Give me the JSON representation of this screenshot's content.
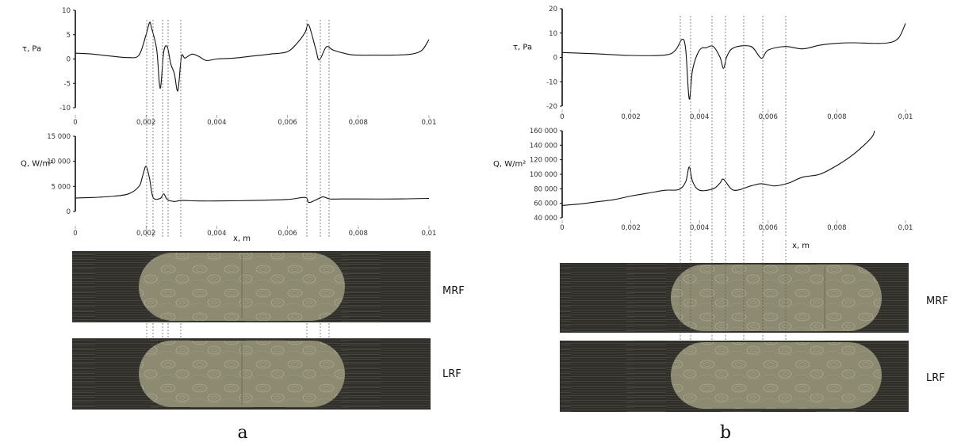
{
  "panels": [
    {
      "letter": "a",
      "charts": [
        {
          "type": "line",
          "ylabel": "τ, Pa",
          "xlabel": "",
          "xlim": [
            0,
            0.01
          ],
          "ylim": [
            -10,
            10
          ],
          "x_ticks": [
            0,
            0.002,
            0.004,
            0.006,
            0.008,
            0.01
          ],
          "x_tick_labels": [
            "0",
            "0,002",
            "0,004",
            "0,006",
            "0,008",
            "0,01"
          ],
          "y_ticks": [
            10,
            5,
            0,
            -5,
            -10
          ],
          "y_tick_labels": [
            "10",
            "5",
            "0",
            "-5",
            "-10"
          ],
          "grid": false,
          "series": [
            {
              "x": [
                0,
                0.0005,
                0.001,
                0.0015,
                0.0018,
                0.002,
                0.0021,
                0.00215,
                0.0023,
                0.0024,
                0.0025,
                0.0026,
                0.0027,
                0.0028,
                0.0029,
                0.003,
                0.0031,
                0.0033,
                0.0035,
                0.0037,
                0.004,
                0.0045,
                0.005,
                0.0055,
                0.006,
                0.0063,
                0.0065,
                0.0066,
                0.0068,
                0.0069,
                0.0071,
                0.0073,
                0.0077,
                0.008,
                0.0085,
                0.009,
                0.0095,
                0.0098,
                0.01
              ],
              "y": [
                1.2,
                1.0,
                0.6,
                0.3,
                0.8,
                5.0,
                7.5,
                6.5,
                2.0,
                -6.0,
                1.5,
                2.5,
                -1.0,
                -3.0,
                -6.5,
                0.5,
                0.2,
                1.0,
                0.5,
                -0.3,
                0.0,
                0.2,
                0.6,
                1.0,
                1.5,
                3.5,
                5.5,
                7.0,
                2.0,
                -0.2,
                2.5,
                1.8,
                1.0,
                0.8,
                0.8,
                0.8,
                1.0,
                1.8,
                4.0
              ]
            }
          ]
        },
        {
          "type": "line",
          "ylabel": "Q, W/m²",
          "xlabel": "x, m",
          "xlim": [
            0,
            0.01
          ],
          "ylim": [
            0,
            15000
          ],
          "x_ticks": [
            0,
            0.002,
            0.004,
            0.006,
            0.008,
            0.01
          ],
          "x_tick_labels": [
            "0",
            "0,002",
            "0,004",
            "0,006",
            "0,008",
            "0,01"
          ],
          "y_ticks": [
            15000,
            10000,
            5000,
            0
          ],
          "y_tick_labels": [
            "15 000",
            "10 000",
            "5 000",
            "0"
          ],
          "grid": false,
          "series": [
            {
              "x": [
                0,
                0.0005,
                0.001,
                0.0015,
                0.0018,
                0.0019,
                0.002,
                0.0021,
                0.0022,
                0.0024,
                0.0025,
                0.0026,
                0.0028,
                0.003,
                0.0035,
                0.004,
                0.005,
                0.006,
                0.0065,
                0.0066,
                0.0068,
                0.007,
                0.0072,
                0.0075,
                0.008,
                0.009,
                0.01
              ],
              "y": [
                2700,
                2800,
                3000,
                3500,
                5000,
                7000,
                9000,
                6500,
                2800,
                2600,
                3500,
                2400,
                2000,
                2200,
                2100,
                2100,
                2200,
                2400,
                2800,
                1800,
                2300,
                2900,
                2500,
                2500,
                2500,
                2500,
                2600
              ]
            }
          ]
        }
      ],
      "flows": [
        {
          "label": "MRF"
        },
        {
          "label": "LRF"
        }
      ]
    },
    {
      "letter": "b",
      "charts": [
        {
          "type": "line",
          "ylabel": "τ, Pa",
          "xlabel": "",
          "xlim": [
            0,
            0.01
          ],
          "ylim": [
            -20,
            20
          ],
          "x_ticks": [
            0,
            0.002,
            0.004,
            0.006,
            0.008,
            0.01
          ],
          "x_tick_labels": [
            "0",
            "0,002",
            "0,004",
            "0,006",
            "0,008",
            "0,01"
          ],
          "y_ticks": [
            20,
            10,
            0,
            -10,
            -20
          ],
          "y_tick_labels": [
            "20",
            "10",
            "0",
            "-10",
            "-20"
          ],
          "grid": false,
          "series": [
            {
              "x": [
                0,
                0.001,
                0.002,
                0.003,
                0.0033,
                0.0035,
                0.0036,
                0.0037,
                0.0038,
                0.004,
                0.0042,
                0.0044,
                0.0046,
                0.0047,
                0.0048,
                0.005,
                0.0055,
                0.0058,
                0.006,
                0.0065,
                0.007,
                0.0075,
                0.008,
                0.0085,
                0.009,
                0.0095,
                0.0098,
                0.01
              ],
              "y": [
                2,
                1.5,
                0.8,
                1.0,
                3.0,
                7.5,
                3.0,
                -17,
                -5.0,
                3.0,
                4.0,
                4.5,
                0.0,
                -4.5,
                0.5,
                4.0,
                4.5,
                -0.3,
                3.0,
                4.5,
                3.5,
                5.0,
                5.8,
                6.0,
                5.8,
                6.0,
                8.0,
                14
              ]
            }
          ]
        },
        {
          "type": "line",
          "ylabel": "Q, W/m²",
          "xlabel": "x, m",
          "xlim": [
            0,
            0.01
          ],
          "ylim": [
            40000,
            160000
          ],
          "x_ticks": [
            0,
            0.002,
            0.004,
            0.006,
            0.008,
            0.01
          ],
          "x_tick_labels": [
            "0",
            "0,002",
            "0,004",
            "0,006",
            "0,008",
            "0,01"
          ],
          "y_ticks": [
            160000,
            140000,
            120000,
            100000,
            80000,
            60000,
            40000
          ],
          "y_tick_labels": [
            "160 000",
            "140 000",
            "120 000",
            "100 000",
            "80 000",
            "60 000",
            "40 000"
          ],
          "grid": false,
          "series": [
            {
              "x": [
                0,
                0.0005,
                0.001,
                0.0015,
                0.002,
                0.0025,
                0.003,
                0.0034,
                0.0036,
                0.0037,
                0.0038,
                0.004,
                0.0044,
                0.0046,
                0.0047,
                0.005,
                0.0055,
                0.0058,
                0.0062,
                0.0066,
                0.007,
                0.0075,
                0.008,
                0.0085,
                0.009,
                0.0091
              ],
              "y": [
                57000,
                59000,
                62000,
                65000,
                70000,
                74000,
                78000,
                79000,
                90000,
                110000,
                90000,
                78000,
                80000,
                88000,
                93000,
                78000,
                84000,
                87000,
                84000,
                88000,
                96000,
                100000,
                112000,
                128000,
                150000,
                160000
              ]
            }
          ]
        }
      ],
      "flows": [
        {
          "label": "MRF"
        },
        {
          "label": "LRF"
        }
      ]
    }
  ],
  "colors": {
    "line": "#111111",
    "flow_background": "#2f2e29",
    "flow_bubble": "#8d8a72",
    "dashed": "#555555"
  }
}
